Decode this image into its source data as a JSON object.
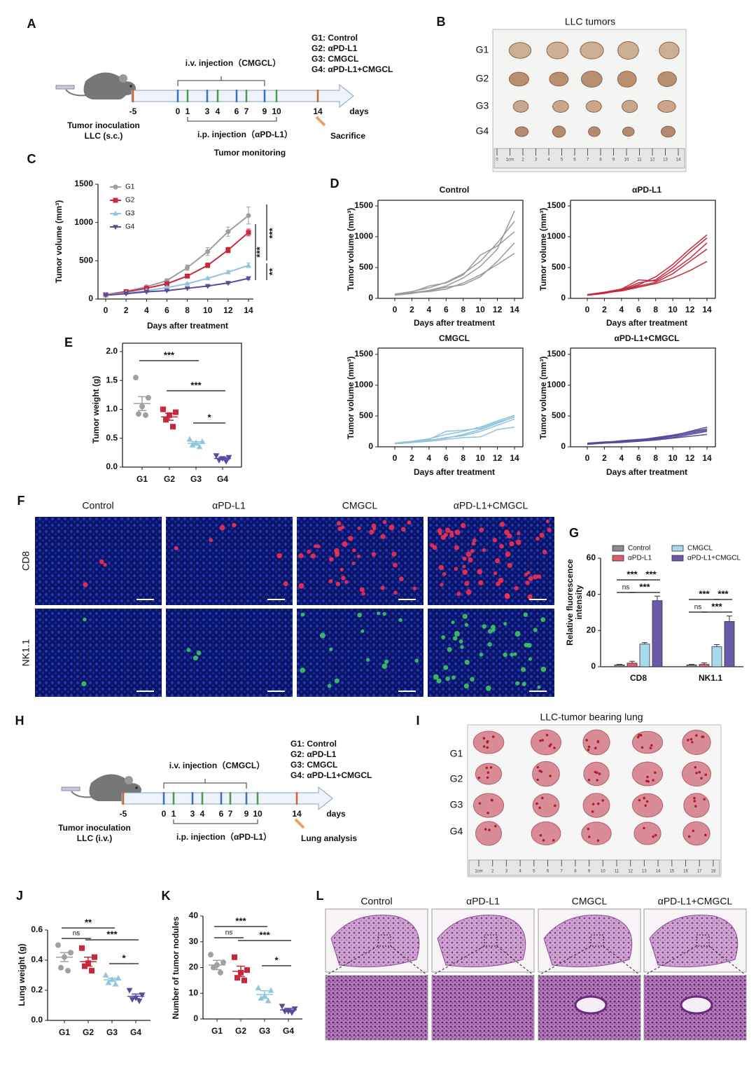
{
  "panel_labels": [
    "A",
    "B",
    "C",
    "D",
    "E",
    "F",
    "G",
    "H",
    "I",
    "J",
    "K",
    "L"
  ],
  "scheme_a": {
    "groups": [
      "G1: Control",
      "G2: αPD-L1",
      "G3: CMGCL",
      "G4: αPD-L1+CMGCL"
    ],
    "iv": "i.v. injection（CMGCL）",
    "ip": "i.p. injection（αPD-L1）",
    "days": [
      -5,
      0,
      1,
      3,
      4,
      6,
      7,
      9,
      10,
      14
    ],
    "unit": "days",
    "monitoring": "Tumor monitoring",
    "inoculation": "Tumor inoculation",
    "route": "LLC (s.c.)",
    "endpoint": "Sacrifice"
  },
  "photo_b": {
    "title": "LLC tumors",
    "rows": [
      "G1",
      "G2",
      "G3",
      "G4"
    ],
    "ruler": [
      "0",
      "1cm",
      "2",
      "3",
      "4",
      "5",
      "6",
      "7",
      "8",
      "9",
      "10",
      "11",
      "12",
      "13",
      "14"
    ]
  },
  "panel_f": {
    "columns": [
      "Control",
      "αPD-L1",
      "CMGCL",
      "αPD-L1+CMGCL"
    ],
    "rows": [
      "CD8",
      "NK1.1"
    ]
  },
  "scheme_h": {
    "groups": [
      "G1: Control",
      "G2: αPD-L1",
      "G3: CMGCL",
      "G4: αPD-L1+CMGCL"
    ],
    "iv": "i.v. injection（CMGCL）",
    "ip": "i.p. injection（αPD-L1）",
    "days": [
      -5,
      0,
      1,
      3,
      4,
      6,
      7,
      9,
      10,
      14
    ],
    "unit": "days",
    "inoculation": "Tumor inoculation",
    "route": "LLC (i.v.)",
    "endpoint": "Lung analysis"
  },
  "photo_i": {
    "title": "LLC-tumor bearing lung",
    "rows": [
      "G1",
      "G2",
      "G3",
      "G4"
    ],
    "ruler": [
      "1cm",
      "2",
      "3",
      "4",
      "5",
      "6",
      "7",
      "8",
      "9",
      "10",
      "11",
      "12",
      "13",
      "14",
      "15",
      "16",
      "17",
      "18"
    ]
  },
  "panel_l": {
    "columns": [
      "Control",
      "αPD-L1",
      "CMGCL",
      "αPD-L1+CMGCL"
    ]
  },
  "chart_data": [
    {
      "type": "line",
      "x": [
        0,
        2,
        4,
        6,
        8,
        10,
        12,
        14
      ],
      "xlim": [
        0,
        14
      ],
      "xticks": [
        0,
        2,
        4,
        6,
        8,
        10,
        12,
        14
      ],
      "ylim": [
        0,
        1500
      ],
      "yticks": [
        0,
        500,
        1000,
        1500
      ],
      "x_label": "Days after treatment",
      "y_label": "Tumor volume (mm³)",
      "legend": "top-left",
      "series": [
        {
          "name": "G1",
          "color": "#9e9e9e",
          "marker": "circle",
          "values": [
            60,
            100,
            160,
            240,
            410,
            620,
            880,
            1090
          ],
          "errors": [
            8,
            12,
            18,
            25,
            35,
            50,
            60,
            110
          ]
        },
        {
          "name": "G2",
          "color": "#c8283c",
          "marker": "square",
          "values": [
            55,
            95,
            140,
            200,
            300,
            440,
            640,
            870
          ],
          "errors": [
            6,
            10,
            12,
            20,
            25,
            30,
            35,
            45
          ]
        },
        {
          "name": "G3",
          "color": "#8fc6e0",
          "marker": "triangle",
          "values": [
            55,
            80,
            110,
            150,
            200,
            270,
            350,
            440
          ],
          "errors": [
            5,
            6,
            8,
            10,
            12,
            15,
            20,
            30
          ]
        },
        {
          "name": "G4",
          "color": "#5a4a9c",
          "marker": "triangle-down",
          "values": [
            50,
            70,
            95,
            110,
            140,
            170,
            210,
            270
          ],
          "errors": [
            4,
            5,
            6,
            8,
            8,
            10,
            12,
            15
          ]
        }
      ],
      "annotations": [
        "***",
        "***",
        "**"
      ]
    },
    {
      "type": "line",
      "title": "Control",
      "x": [
        0,
        2,
        4,
        6,
        8,
        10,
        12,
        14
      ],
      "xlim": [
        0,
        14
      ],
      "xticks": [
        0,
        2,
        4,
        6,
        8,
        10,
        12,
        14
      ],
      "ylim": [
        0,
        1500
      ],
      "yticks": [
        0,
        500,
        1000,
        1500
      ],
      "x_label": "Days after treatment",
      "y_label": "Tumor volume (mm³)",
      "series": [
        {
          "color": "#9a9a9a",
          "values": [
            60,
            90,
            130,
            200,
            330,
            520,
            800,
            1420
          ]
        },
        {
          "color": "#9a9a9a",
          "values": [
            70,
            110,
            170,
            260,
            400,
            600,
            900,
            1250
          ]
        },
        {
          "color": "#9a9a9a",
          "values": [
            60,
            100,
            200,
            250,
            380,
            700,
            850,
            1080
          ]
        },
        {
          "color": "#9a9a9a",
          "values": [
            50,
            80,
            120,
            180,
            220,
            350,
            600,
            900
          ]
        },
        {
          "color": "#9a9a9a",
          "values": [
            60,
            90,
            110,
            150,
            250,
            380,
            550,
            730
          ]
        }
      ]
    },
    {
      "type": "line",
      "title": "αPD-L1",
      "x": [
        0,
        2,
        4,
        6,
        8,
        10,
        12,
        14
      ],
      "xlim": [
        0,
        14
      ],
      "xticks": [
        0,
        2,
        4,
        6,
        8,
        10,
        12,
        14
      ],
      "ylim": [
        0,
        1500
      ],
      "yticks": [
        0,
        500,
        1000,
        1500
      ],
      "x_label": "Days after treatment",
      "y_label": "Tumor volume (mm³)",
      "series": [
        {
          "color": "#c42a3e",
          "values": [
            60,
            100,
            130,
            220,
            350,
            550,
            800,
            1030
          ]
        },
        {
          "color": "#c42a3e",
          "values": [
            50,
            90,
            140,
            250,
            300,
            500,
            750,
            980
          ]
        },
        {
          "color": "#c42a3e",
          "values": [
            60,
            100,
            150,
            300,
            280,
            450,
            650,
            900
          ]
        },
        {
          "color": "#c42a3e",
          "values": [
            50,
            80,
            130,
            200,
            260,
            400,
            600,
            800
          ]
        },
        {
          "color": "#c42a3e",
          "values": [
            60,
            90,
            120,
            180,
            240,
            330,
            450,
            600
          ]
        }
      ]
    },
    {
      "type": "line",
      "title": "CMGCL",
      "x": [
        0,
        2,
        4,
        6,
        8,
        10,
        12,
        14
      ],
      "xlim": [
        0,
        14
      ],
      "xticks": [
        0,
        2,
        4,
        6,
        8,
        10,
        12,
        14
      ],
      "ylim": [
        0,
        1500
      ],
      "yticks": [
        0,
        500,
        1000,
        1500
      ],
      "x_label": "Days after treatment",
      "y_label": "Tumor volume (mm³)",
      "series": [
        {
          "color": "#8fc3dc",
          "values": [
            60,
            90,
            130,
            200,
            250,
            320,
            420,
            510
          ]
        },
        {
          "color": "#8fc3dc",
          "values": [
            60,
            80,
            110,
            140,
            200,
            280,
            380,
            490
          ]
        },
        {
          "color": "#8fc3dc",
          "values": [
            50,
            70,
            120,
            250,
            270,
            300,
            400,
            480
          ]
        },
        {
          "color": "#8fc3dc",
          "values": [
            60,
            90,
            100,
            150,
            180,
            250,
            350,
            450
          ]
        },
        {
          "color": "#8fc3dc",
          "values": [
            50,
            70,
            90,
            120,
            150,
            160,
            280,
            320
          ]
        }
      ]
    },
    {
      "type": "line",
      "title": "αPD-L1+CMGCL",
      "x": [
        0,
        2,
        4,
        6,
        8,
        10,
        12,
        14
      ],
      "xlim": [
        0,
        14
      ],
      "xticks": [
        0,
        2,
        4,
        6,
        8,
        10,
        12,
        14
      ],
      "ylim": [
        0,
        1500
      ],
      "yticks": [
        0,
        500,
        1000,
        1500
      ],
      "x_label": "Days after treatment",
      "y_label": "Tumor volume (mm³)",
      "series": [
        {
          "color": "#5b4a9e",
          "values": [
            50,
            70,
            100,
            120,
            140,
            180,
            250,
            320
          ]
        },
        {
          "color": "#5b4a9e",
          "values": [
            60,
            80,
            90,
            110,
            150,
            190,
            240,
            290
          ]
        },
        {
          "color": "#5b4a9e",
          "values": [
            40,
            60,
            80,
            100,
            130,
            170,
            220,
            270
          ]
        },
        {
          "color": "#5b4a9e",
          "values": [
            50,
            70,
            80,
            90,
            120,
            150,
            200,
            250
          ]
        },
        {
          "color": "#5b4a9e",
          "values": [
            40,
            60,
            70,
            90,
            110,
            140,
            170,
            200
          ]
        }
      ]
    },
    {
      "type": "dot",
      "categories": [
        "G1",
        "G2",
        "G3",
        "G4"
      ],
      "colors": [
        "#a0a0a0",
        "#c8283c",
        "#8fc6e0",
        "#5a4a9c"
      ],
      "markers": [
        "circle",
        "square",
        "triangle",
        "triangle-down"
      ],
      "points": [
        [
          1.55,
          1.2,
          1.05,
          0.92,
          0.9
        ],
        [
          1.0,
          0.95,
          0.9,
          0.82,
          0.7
        ],
        [
          0.48,
          0.44,
          0.42,
          0.38,
          0.35
        ],
        [
          0.2,
          0.17,
          0.15,
          0.12,
          0.1
        ]
      ],
      "means": [
        1.1,
        0.87,
        0.41,
        0.15
      ],
      "errors": [
        0.12,
        0.06,
        0.03,
        0.02
      ],
      "ylim": [
        0,
        2
      ],
      "yticks": [
        {
          "value": 0,
          "label": "0.0"
        },
        0.5,
        {
          "value": 1,
          "label": "1.0"
        },
        1.5,
        {
          "value": 2,
          "label": "2.0"
        }
      ],
      "y_label": "Tumor weight (g)",
      "annotations": [
        "***",
        "***",
        "*"
      ]
    },
    {
      "type": "bar",
      "categories": [
        "CD8",
        "NK1.1"
      ],
      "series": [
        {
          "name": "Control",
          "color": "#8a8a8a",
          "values": [
            1,
            1
          ],
          "errors": [
            0.3,
            0.3
          ]
        },
        {
          "name": "αPD-L1",
          "color": "#e05a6e",
          "values": [
            2,
            1.3
          ],
          "errors": [
            1,
            0.8
          ]
        },
        {
          "name": "CMGCL",
          "color": "#a9d9ec",
          "values": [
            12.5,
            11
          ],
          "errors": [
            0.8,
            1.2
          ]
        },
        {
          "name": "αPD-L1+CMGCL",
          "color": "#6b5aa8",
          "values": [
            36.5,
            25
          ],
          "errors": [
            2.5,
            3
          ]
        }
      ],
      "ylim": [
        0,
        60
      ],
      "yticks": [
        0,
        20,
        40,
        60
      ],
      "y_label": [
        "Relative fluorescence",
        "intensity"
      ],
      "legend": "top",
      "annotations": [
        "***",
        "***",
        "ns",
        "***",
        "***",
        "***",
        "ns",
        "***"
      ]
    },
    {
      "type": "dot",
      "categories": [
        "G1",
        "G2",
        "G3",
        "G4"
      ],
      "colors": [
        "#a0a0a0",
        "#c8283c",
        "#8fc6e0",
        "#5a4a9c"
      ],
      "markers": [
        "circle",
        "square",
        "triangle",
        "triangle-down"
      ],
      "points": [
        [
          0.5,
          0.45,
          0.42,
          0.35,
          0.33
        ],
        [
          0.48,
          0.42,
          0.38,
          0.36,
          0.33
        ],
        [
          0.3,
          0.28,
          0.27,
          0.25,
          0.24
        ],
        [
          0.2,
          0.17,
          0.15,
          0.14,
          0.13
        ]
      ],
      "means": [
        0.42,
        0.39,
        0.27,
        0.16
      ],
      "errors": [
        0.03,
        0.03,
        0.01,
        0.015
      ],
      "ylim": [
        0,
        0.6
      ],
      "yticks": [
        {
          "value": 0,
          "label": "0.0"
        },
        0.2,
        0.4,
        0.6
      ],
      "y_label": "Lung weight (g)",
      "annotations": [
        "**",
        "ns",
        "***",
        "*"
      ]
    },
    {
      "type": "dot",
      "categories": [
        "G1",
        "G2",
        "G3",
        "G4"
      ],
      "colors": [
        "#a0a0a0",
        "#c8283c",
        "#8fc6e0",
        "#5a4a9c"
      ],
      "markers": [
        "circle",
        "square",
        "triangle",
        "triangle-down"
      ],
      "points": [
        [
          25,
          22,
          21,
          20,
          18
        ],
        [
          24,
          19,
          18,
          16,
          15
        ],
        [
          12,
          11,
          9,
          8,
          7
        ],
        [
          5,
          4,
          3,
          3,
          2.5
        ]
      ],
      "means": [
        21,
        18.5,
        9.5,
        3.5
      ],
      "errors": [
        1.8,
        2,
        1.5,
        0.6
      ],
      "ylim": [
        0,
        40
      ],
      "yticks": [
        0,
        10,
        20,
        30,
        40
      ],
      "y_label": "Number of tumor nodules",
      "annotations": [
        "***",
        "ns",
        "***",
        "*"
      ]
    }
  ]
}
